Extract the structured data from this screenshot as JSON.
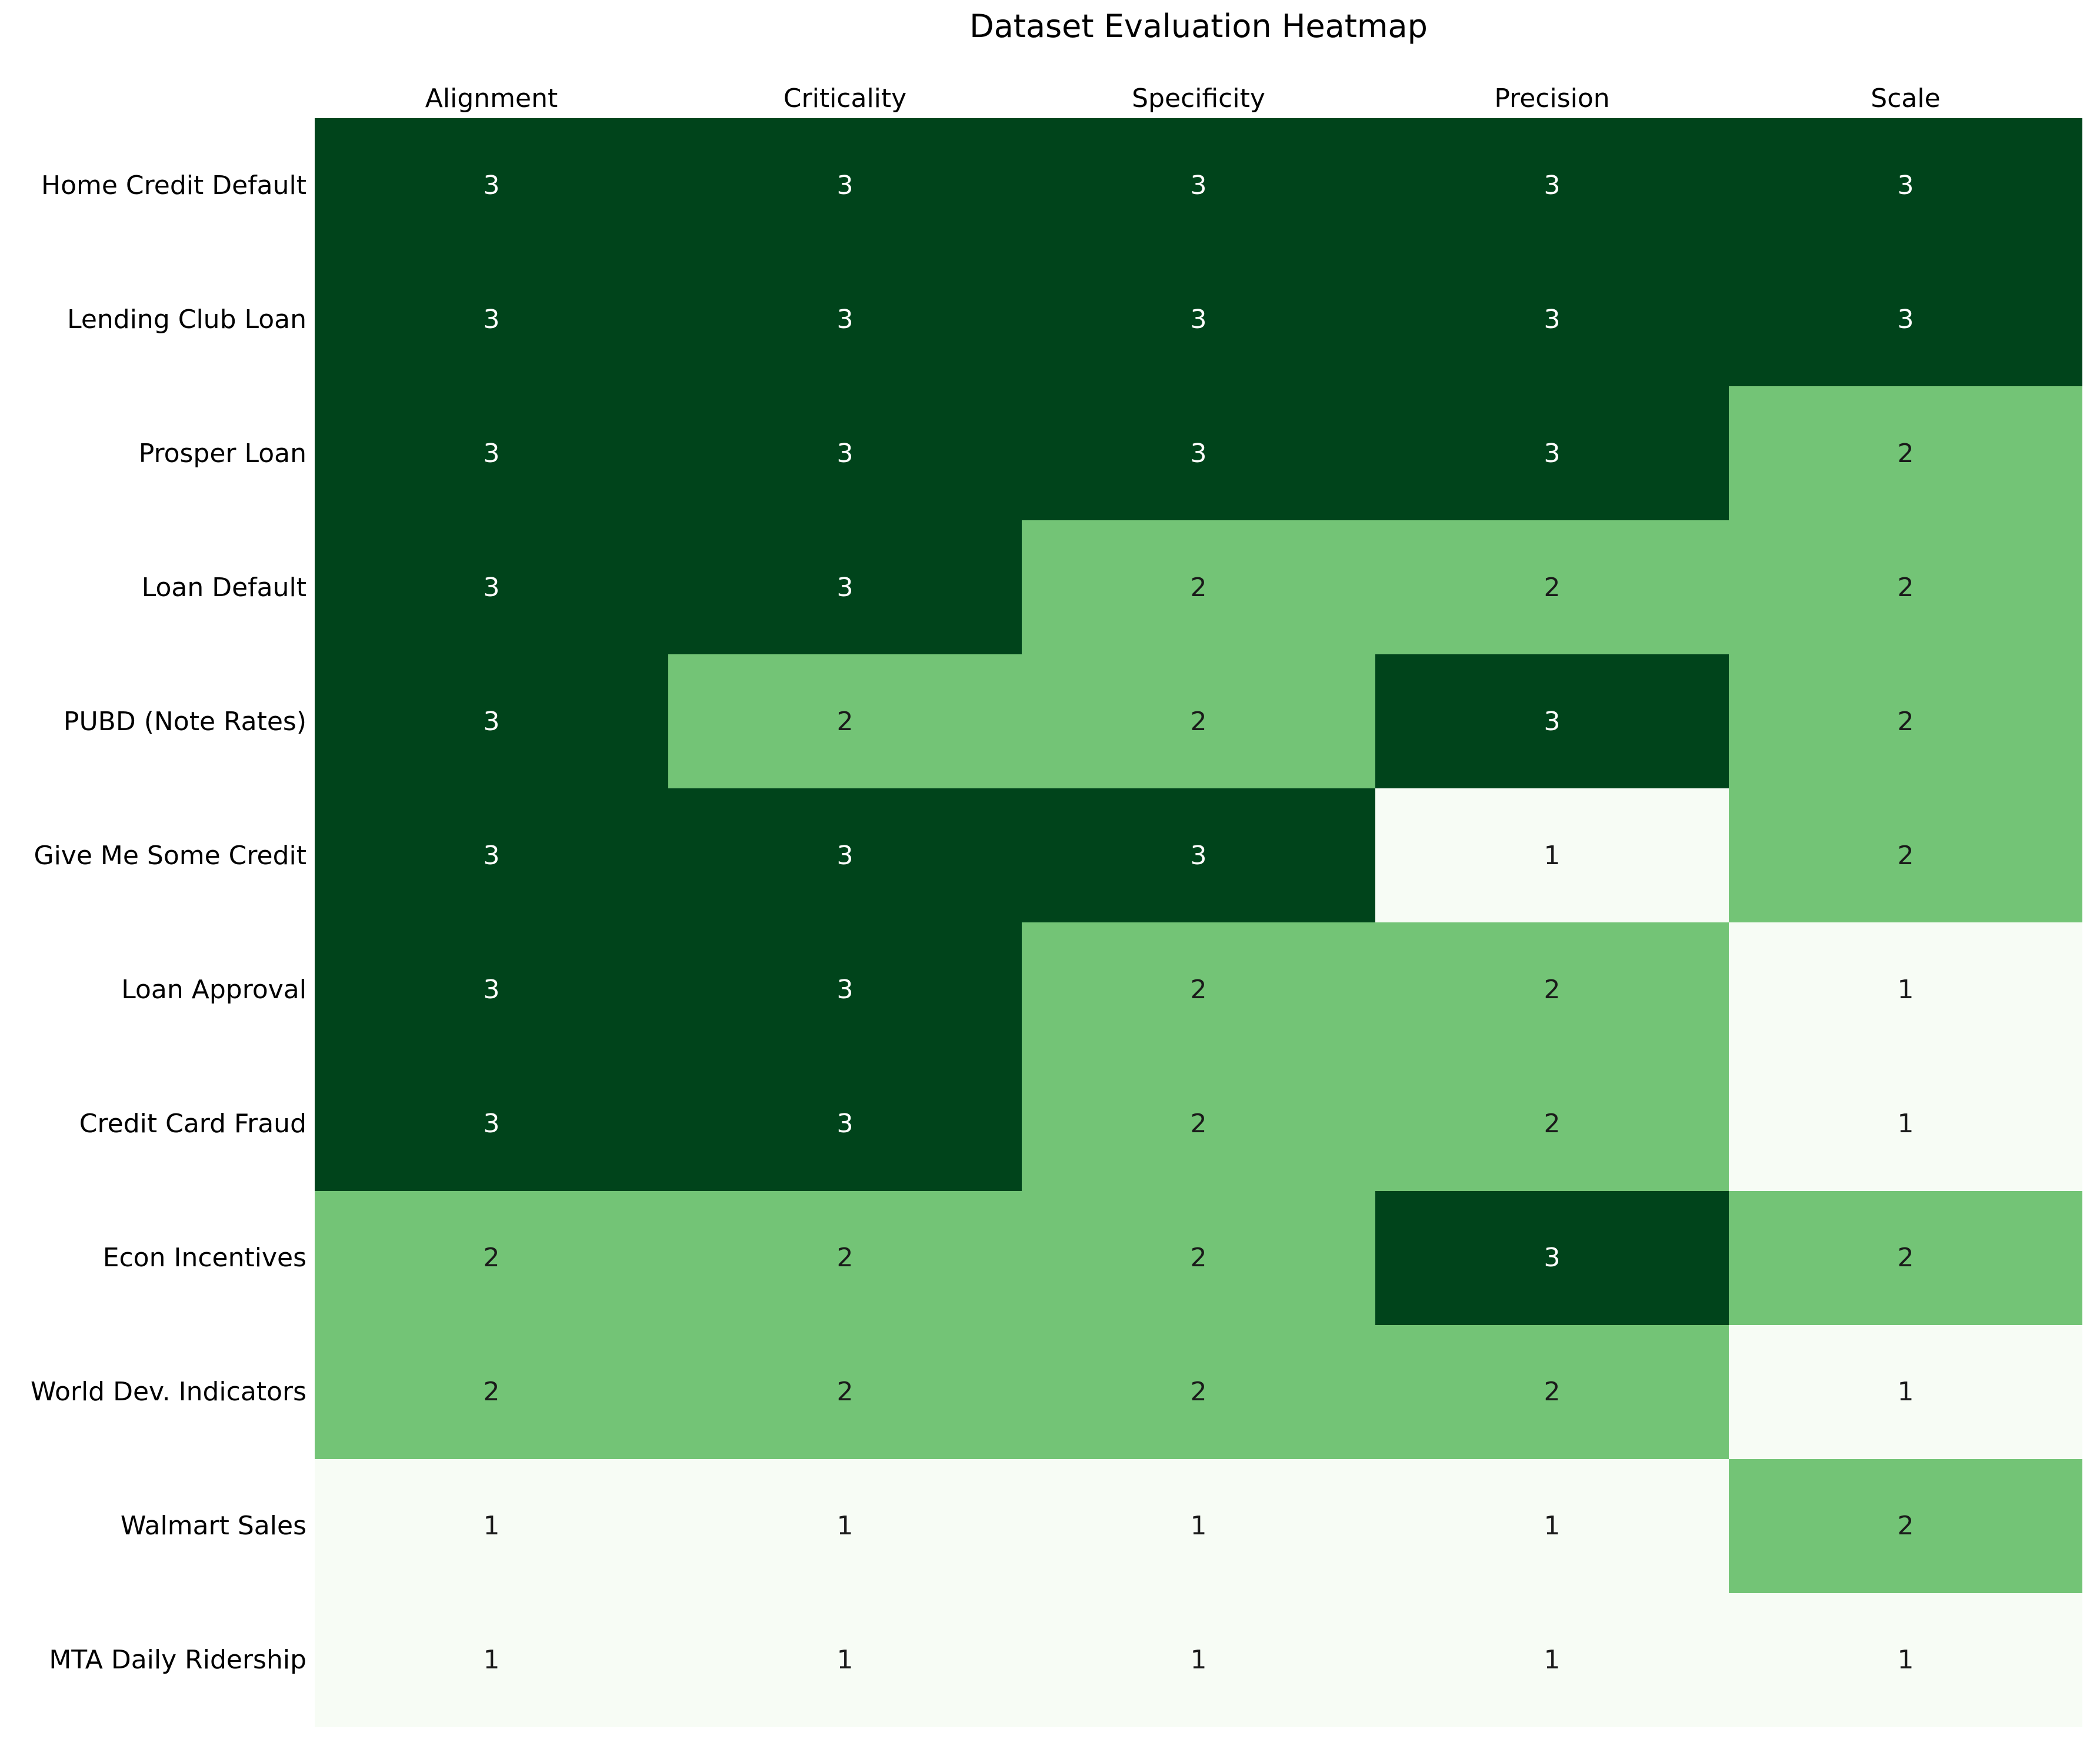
{
  "chart_data": {
    "type": "heatmap",
    "title": "Dataset Evaluation Heatmap",
    "columns": [
      "Alignment",
      "Criticality",
      "Specificity",
      "Precision",
      "Scale"
    ],
    "rows": [
      {
        "label": "Home Credit Default",
        "values": [
          3,
          3,
          3,
          3,
          3
        ]
      },
      {
        "label": "Lending Club Loan",
        "values": [
          3,
          3,
          3,
          3,
          3
        ]
      },
      {
        "label": "Prosper Loan",
        "values": [
          3,
          3,
          3,
          3,
          2
        ]
      },
      {
        "label": "Loan Default",
        "values": [
          3,
          3,
          2,
          2,
          2
        ]
      },
      {
        "label": "PUBD (Note Rates)",
        "values": [
          3,
          2,
          2,
          3,
          2
        ]
      },
      {
        "label": "Give Me Some Credit",
        "values": [
          3,
          3,
          3,
          1,
          2
        ]
      },
      {
        "label": "Loan Approval",
        "values": [
          3,
          3,
          2,
          2,
          1
        ]
      },
      {
        "label": "Credit Card Fraud",
        "values": [
          3,
          3,
          2,
          2,
          1
        ]
      },
      {
        "label": "Econ Incentives",
        "values": [
          2,
          2,
          2,
          3,
          2
        ]
      },
      {
        "label": "World Dev. Indicators",
        "values": [
          2,
          2,
          2,
          2,
          1
        ]
      },
      {
        "label": "Walmart Sales",
        "values": [
          1,
          1,
          1,
          1,
          2
        ]
      },
      {
        "label": "MTA Daily Ridership",
        "values": [
          1,
          1,
          1,
          1,
          1
        ]
      }
    ],
    "value_range": [
      1,
      3
    ],
    "value_colors": {
      "value_1": "#f7fcf5",
      "value_2": "#73c476",
      "value_3": "#00441b"
    },
    "text_colors": {
      "on_dark": "#ffffff",
      "on_light": "#1a1a1a"
    },
    "background": "#ffffff",
    "legend": "none",
    "gridlines": false
  }
}
